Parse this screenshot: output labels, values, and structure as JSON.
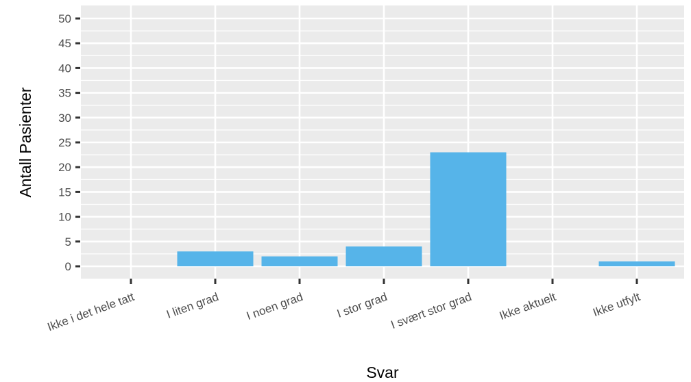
{
  "chart_data": {
    "type": "bar",
    "categories": [
      "Ikke i det hele tatt",
      "I liten grad",
      "I noen grad",
      "I stor grad",
      "I svært stor grad",
      "Ikke aktuelt",
      "Ikke utfylt"
    ],
    "values": [
      0,
      3,
      2,
      4,
      23,
      0,
      1
    ],
    "xlabel": "Svar",
    "ylabel": "Antall Pasienter",
    "ylim": [
      0,
      50
    ],
    "yticks": [
      0,
      5,
      10,
      15,
      20,
      25,
      30,
      35,
      40,
      45,
      50
    ],
    "grid": true,
    "legend": "none",
    "colors": {
      "bar": "#56b4e9",
      "panel": "#ebebeb",
      "grid": "#ffffff",
      "tick": "#333333",
      "tick_text": "#4d4d4d"
    }
  }
}
